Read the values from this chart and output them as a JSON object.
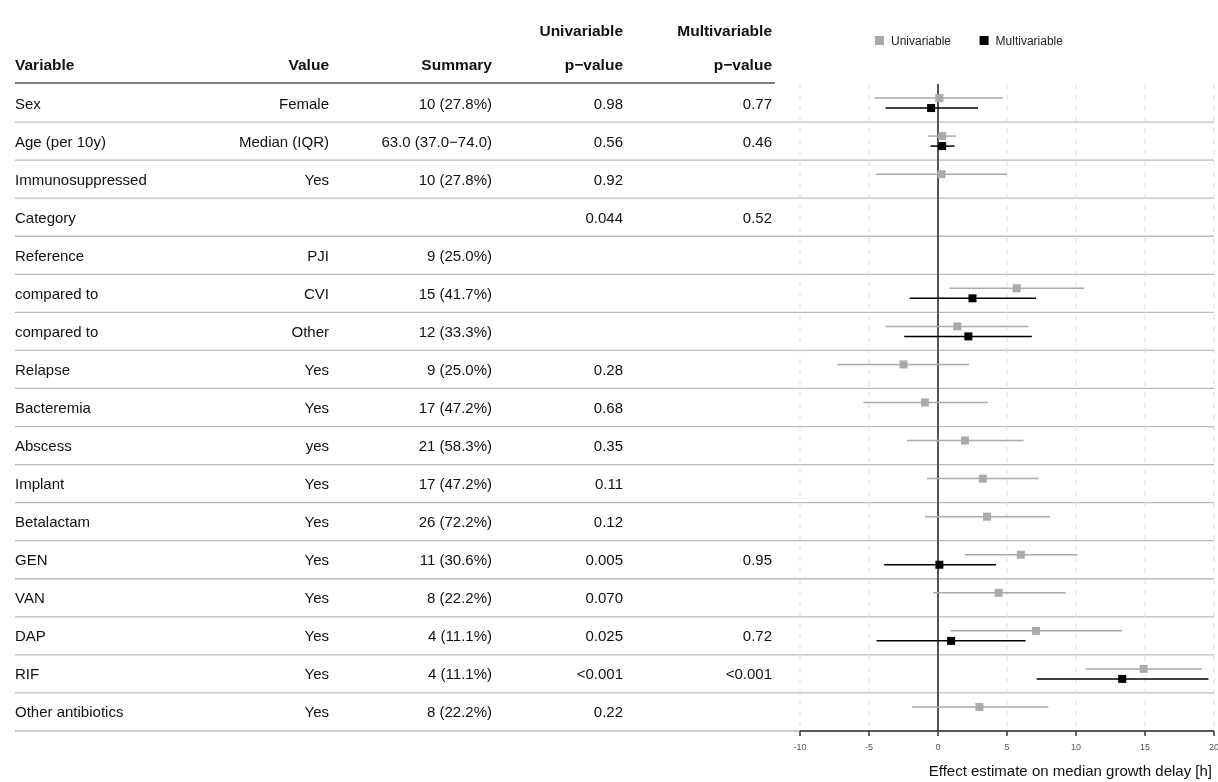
{
  "chart_data": [
    {
      "type": "other",
      "categories": [
        "Variable",
        "Value",
        "Summary",
        "Univariable p−value",
        "Multivariable p−value"
      ],
      "y_categories": [
        "Sex",
        "Age (per 10y)",
        "Immunosuppressed",
        "Category",
        "Reference",
        "compared to",
        "compared to",
        "Relapse",
        "Bacteremia",
        "Abscess",
        "Implant",
        "Betalactam",
        "GEN",
        "VAN",
        "DAP",
        "RIF",
        "Other antibiotics"
      ],
      "cell_labels": [
        [
          "Female",
          "10 (27.8%)",
          "0.98",
          "0.77"
        ],
        [
          "Median (IQR)",
          "63.0 (37.0−74.0)",
          "0.56",
          "0.46"
        ],
        [
          "Yes",
          "10 (27.8%)",
          "0.92",
          null
        ],
        [
          null,
          null,
          "0.044",
          "0.52"
        ],
        [
          "PJI",
          "9 (25.0%)",
          null,
          null
        ],
        [
          "CVI",
          "15 (41.7%)",
          null,
          null
        ],
        [
          "Other",
          "12 (33.3%)",
          null,
          null
        ],
        [
          "Yes",
          "9 (25.0%)",
          "0.28",
          null
        ],
        [
          "Yes",
          "17 (47.2%)",
          "0.68",
          null
        ],
        [
          "yes",
          "21 (58.3%)",
          "0.35",
          null
        ],
        [
          "Yes",
          "17 (47.2%)",
          "0.11",
          null
        ],
        [
          "Yes",
          "26 (72.2%)",
          "0.12",
          null
        ],
        [
          "Yes",
          "11 (30.6%)",
          "0.005",
          "0.95"
        ],
        [
          "Yes",
          "8 (22.2%)",
          "0.070",
          null
        ],
        [
          "Yes",
          "4 (11.1%)",
          "0.025",
          "0.72"
        ],
        [
          "Yes",
          "4 (11.1%)",
          "<0.001",
          "<0.001"
        ],
        [
          "Yes",
          "8 (22.2%)",
          "0.22",
          null
        ]
      ]
    },
    {
      "type": "scatter",
      "orientation": "horizontal",
      "xlabel": "Effect estimate on median growth delay [h]",
      "categories": [
        null,
        null,
        null,
        null,
        null,
        null,
        null,
        null,
        null,
        null,
        null,
        null,
        null,
        null,
        null,
        null,
        null
      ],
      "xlim": [
        -10,
        20
      ],
      "xticks": [
        -10,
        -5,
        0,
        5,
        10,
        15,
        20
      ],
      "tick_labels": "x",
      "grid": "x",
      "legend": "top",
      "marker": "square",
      "ref_lines": [
        {
          "axis": "x",
          "value": 0,
          "color": "#555555"
        }
      ],
      "series": [
        {
          "name": "Univariable",
          "color": "#aaaaaa",
          "values": [
            0.1,
            0.3,
            0.25,
            null,
            null,
            5.7,
            1.4,
            -2.5,
            -0.95,
            1.95,
            3.25,
            3.55,
            6.0,
            4.4,
            7.1,
            14.9,
            3.0
          ],
          "errors": [
            [
              -4.6,
              4.7
            ],
            [
              -0.7,
              1.3
            ],
            [
              -4.5,
              5.0
            ],
            null,
            null,
            [
              0.85,
              10.6
            ],
            [
              -3.8,
              6.55
            ],
            [
              -7.3,
              2.25
            ],
            [
              -5.4,
              3.6
            ],
            [
              -2.25,
              6.2
            ],
            [
              -0.8,
              7.3
            ],
            [
              -0.95,
              8.1
            ],
            [
              1.95,
              10.1
            ],
            [
              -0.35,
              9.25
            ],
            [
              0.9,
              13.35
            ],
            [
              10.7,
              19.1
            ],
            [
              -1.9,
              8.0
            ]
          ]
        },
        {
          "name": "Multivariable",
          "color": "#000000",
          "values": [
            -0.5,
            0.3,
            null,
            null,
            null,
            2.5,
            2.2,
            null,
            null,
            null,
            null,
            null,
            0.1,
            null,
            0.95,
            13.35,
            null
          ],
          "errors": [
            [
              -3.8,
              2.9
            ],
            [
              -0.55,
              1.2
            ],
            null,
            null,
            null,
            [
              -2.05,
              7.1
            ],
            [
              -2.45,
              6.8
            ],
            null,
            null,
            null,
            null,
            null,
            [
              -3.9,
              4.2
            ],
            null,
            [
              -4.45,
              6.35
            ],
            [
              7.15,
              19.6
            ],
            null
          ]
        }
      ]
    }
  ]
}
